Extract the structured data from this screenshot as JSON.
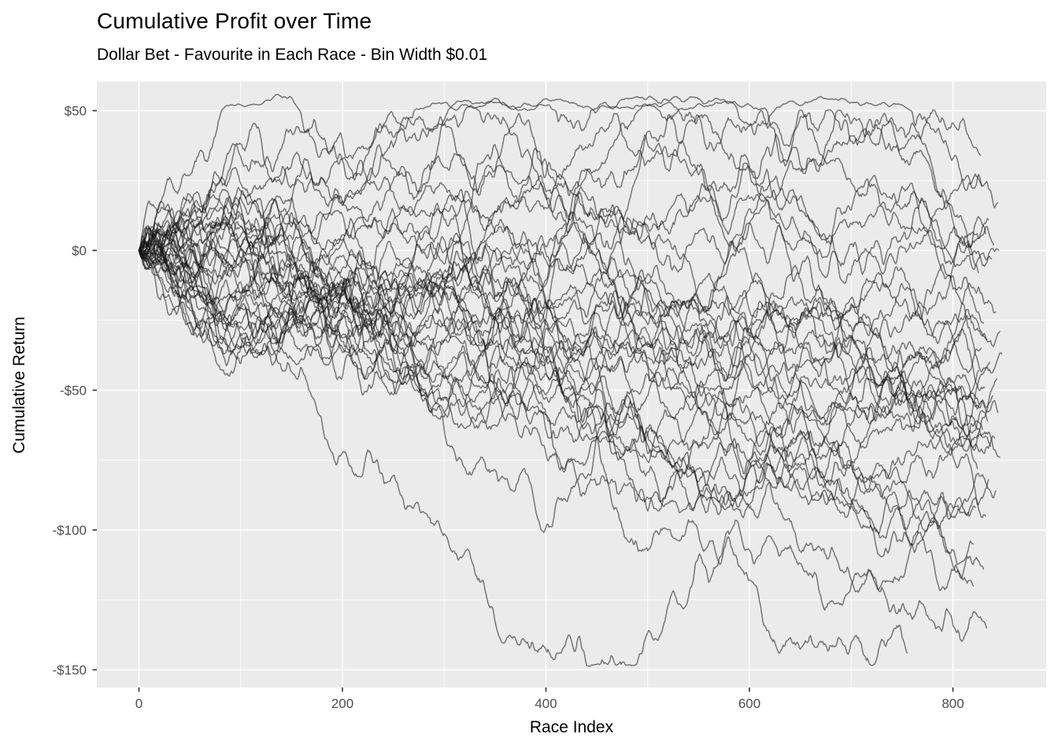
{
  "header": {
    "title": "Cumulative Profit over Time",
    "subtitle": "Dollar Bet - Favourite in Each Race - Bin Width $0.01"
  },
  "chart_data": {
    "type": "line",
    "title": "Cumulative Profit over Time",
    "subtitle": "Dollar Bet - Favourite in Each Race - Bin Width $0.01",
    "xlabel": "Race Index",
    "ylabel": "Cumulative Return",
    "legend": "none",
    "grid": "on",
    "panel_background": "#EBEBEB",
    "grid_color": "#FFFFFF",
    "line_color": "rgba(20,20,20,0.55)",
    "tick_label_color": "#4D4D4D",
    "tick_mark_color": "#333333",
    "xlim": [
      -41,
      892
    ],
    "ylim": [
      -156,
      60
    ],
    "x_ticks": [
      {
        "value": 0,
        "label": "0"
      },
      {
        "value": 200,
        "label": "200"
      },
      {
        "value": 400,
        "label": "400"
      },
      {
        "value": 600,
        "label": "600"
      },
      {
        "value": 800,
        "label": "800"
      }
    ],
    "y_ticks": [
      {
        "value": 50,
        "label": "$50"
      },
      {
        "value": 0,
        "label": "$0"
      },
      {
        "value": -50,
        "label": "-$50"
      },
      {
        "value": -100,
        "label": "-$100"
      },
      {
        "value": -150,
        "label": "-$150"
      }
    ],
    "x_minor": [
      100,
      300,
      500,
      700
    ],
    "y_minor": [
      25,
      -25,
      -75,
      -125
    ],
    "n_series": 37,
    "series_note": "Each series is a simulated cumulative-return random walk starting at $0 on race 0; 'end' is the last race index and 'final' the ending cumulative return in dollars (estimated from the plot). Peak of best path ~ +$50 near race 570-790; worst path dips to ~ -$145.",
    "series": [
      {
        "seed": 101,
        "end": 827,
        "final": 34
      },
      {
        "seed": 102,
        "end": 828,
        "final": 23
      },
      {
        "seed": 103,
        "end": 844,
        "final": 17
      },
      {
        "seed": 104,
        "end": 835,
        "final": 11
      },
      {
        "seed": 105,
        "end": 832,
        "final": 6
      },
      {
        "seed": 106,
        "end": 840,
        "final": 2
      },
      {
        "seed": 107,
        "end": 845,
        "final": 0
      },
      {
        "seed": 108,
        "end": 838,
        "final": -3
      },
      {
        "seed": 109,
        "end": 825,
        "final": -8
      },
      {
        "seed": 110,
        "end": 842,
        "final": -22
      },
      {
        "seed": 111,
        "end": 830,
        "final": -26
      },
      {
        "seed": 112,
        "end": 846,
        "final": -29
      },
      {
        "seed": 113,
        "end": 833,
        "final": -32
      },
      {
        "seed": 114,
        "end": 828,
        "final": -35
      },
      {
        "seed": 115,
        "end": 848,
        "final": -37
      },
      {
        "seed": 116,
        "end": 836,
        "final": -40
      },
      {
        "seed": 117,
        "end": 825,
        "final": -43
      },
      {
        "seed": 118,
        "end": 843,
        "final": -46
      },
      {
        "seed": 119,
        "end": 831,
        "final": -49
      },
      {
        "seed": 120,
        "end": 839,
        "final": -52
      },
      {
        "seed": 121,
        "end": 826,
        "final": -55
      },
      {
        "seed": 122,
        "end": 844,
        "final": -58
      },
      {
        "seed": 123,
        "end": 834,
        "final": -61
      },
      {
        "seed": 124,
        "end": 829,
        "final": -64
      },
      {
        "seed": 125,
        "end": 841,
        "final": -67
      },
      {
        "seed": 126,
        "end": 837,
        "final": -70
      },
      {
        "seed": 127,
        "end": 846,
        "final": -74
      },
      {
        "seed": 128,
        "end": 824,
        "final": -78
      },
      {
        "seed": 129,
        "end": 835,
        "final": -82
      },
      {
        "seed": 130,
        "end": 842,
        "final": -86
      },
      {
        "seed": 131,
        "end": 822,
        "final": -92
      },
      {
        "seed": 132,
        "end": 832,
        "final": -95
      },
      {
        "seed": 133,
        "end": 820,
        "final": -105
      },
      {
        "seed": 134,
        "end": 830,
        "final": -114
      },
      {
        "seed": 135,
        "end": 820,
        "final": -120
      },
      {
        "seed": 136,
        "end": 833,
        "final": -135
      },
      {
        "seed": 137,
        "end": 755,
        "final": -144
      }
    ]
  }
}
